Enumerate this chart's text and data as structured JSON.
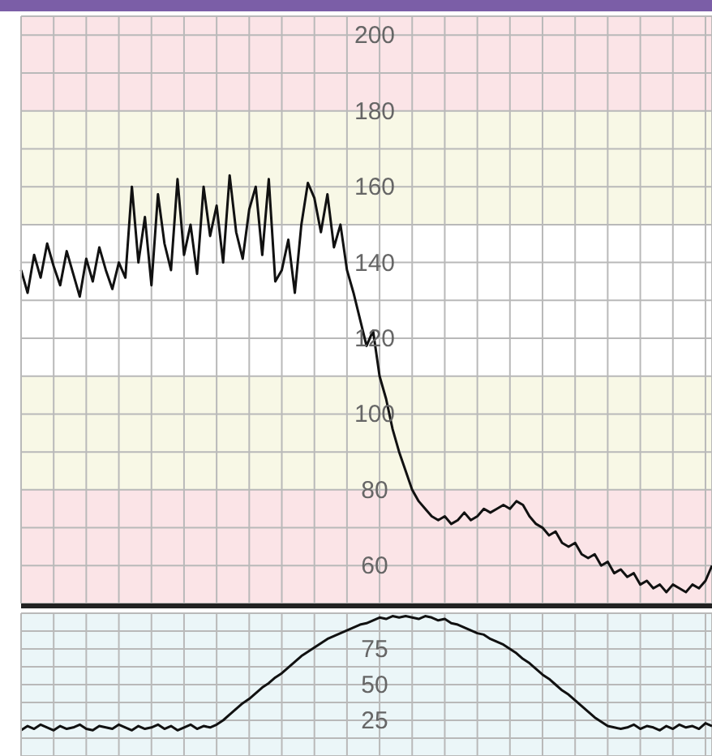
{
  "chart_data": [
    {
      "type": "line",
      "categories": [
        null,
        null,
        null,
        null,
        null,
        null,
        null,
        null,
        null,
        null,
        null,
        null,
        null,
        null,
        null,
        null,
        null,
        null,
        null,
        null,
        null,
        null,
        null,
        null,
        null,
        null,
        null,
        null,
        null,
        null,
        null,
        null,
        null,
        null,
        null,
        null,
        null,
        null,
        null,
        null,
        null,
        null,
        null,
        null,
        null,
        null,
        null,
        null,
        null,
        null,
        null,
        null,
        null,
        null,
        null,
        null,
        null,
        null,
        null,
        null,
        null,
        null,
        null,
        null,
        null,
        null,
        null,
        null,
        null,
        null,
        null,
        null,
        null,
        null,
        null,
        null,
        null,
        null,
        null,
        null,
        null,
        null,
        null,
        null,
        null,
        null,
        null,
        null,
        null,
        null,
        null,
        null,
        null,
        null,
        null,
        null,
        null,
        null,
        null,
        null,
        null,
        null,
        null,
        null,
        null,
        null,
        null
      ],
      "series": [
        {
          "color": "#111111",
          "values": [
            138,
            132,
            142,
            136,
            145,
            139,
            134,
            143,
            137,
            131,
            141,
            135,
            144,
            138,
            133,
            140,
            136,
            160,
            140,
            152,
            134,
            158,
            145,
            138,
            162,
            142,
            150,
            137,
            160,
            147,
            155,
            140,
            163,
            148,
            141,
            154,
            160,
            142,
            162,
            135,
            138,
            146,
            132,
            150,
            161,
            157,
            148,
            158,
            144,
            150,
            138,
            132,
            125,
            118,
            122,
            110,
            104,
            96,
            90,
            85,
            80,
            77,
            75,
            73,
            72,
            73,
            71,
            72,
            74,
            72,
            73,
            75,
            74,
            75,
            76,
            75,
            77,
            76,
            73,
            71,
            70,
            68,
            69,
            66,
            65,
            66,
            63,
            62,
            63,
            60,
            61,
            58,
            59,
            57,
            58,
            55,
            56,
            54,
            55,
            53,
            55,
            54,
            53,
            55,
            54,
            56,
            60
          ]
        }
      ],
      "ylim": [
        50,
        205
      ],
      "yticks": [
        {
          "value": 50,
          "label": null
        },
        60,
        {
          "value": 70,
          "label": null
        },
        80,
        {
          "value": 90,
          "label": null
        },
        100,
        {
          "value": 110,
          "label": null
        },
        120,
        {
          "value": 130,
          "label": null
        },
        140,
        {
          "value": 150,
          "label": null
        },
        160,
        {
          "value": 170,
          "label": null
        },
        180,
        {
          "value": 190,
          "label": null
        },
        200
      ],
      "bands": [
        {
          "axis": "y",
          "from": 180,
          "to": 205,
          "color": "#fbe4e7"
        },
        {
          "axis": "y",
          "from": 150,
          "to": 180,
          "color": "#f8f8e6"
        },
        {
          "axis": "y",
          "from": 80,
          "to": 110,
          "color": "#f8f8e6"
        },
        {
          "axis": "y",
          "from": 50,
          "to": 80,
          "color": "#fbe4e7"
        }
      ],
      "grid": true,
      "tick_labels": "y"
    },
    {
      "type": "line",
      "categories": [
        null,
        null,
        null,
        null,
        null,
        null,
        null,
        null,
        null,
        null,
        null,
        null,
        null,
        null,
        null,
        null,
        null,
        null,
        null,
        null,
        null,
        null,
        null,
        null,
        null,
        null,
        null,
        null,
        null,
        null,
        null,
        null,
        null,
        null,
        null,
        null,
        null,
        null,
        null,
        null,
        null,
        null,
        null,
        null,
        null,
        null,
        null,
        null,
        null,
        null,
        null,
        null,
        null,
        null,
        null,
        null,
        null,
        null,
        null,
        null,
        null,
        null,
        null,
        null,
        null,
        null,
        null,
        null,
        null,
        null,
        null,
        null,
        null,
        null,
        null,
        null,
        null,
        null,
        null,
        null,
        null,
        null,
        null,
        null,
        null,
        null,
        null,
        null,
        null,
        null,
        null,
        null,
        null,
        null,
        null,
        null,
        null,
        null,
        null,
        null,
        null,
        null,
        null,
        null,
        null,
        null,
        null
      ],
      "series": [
        {
          "color": "#111111",
          "values": [
            18,
            21,
            19,
            22,
            20,
            18,
            21,
            19,
            20,
            22,
            19,
            18,
            21,
            20,
            19,
            22,
            20,
            18,
            21,
            19,
            20,
            22,
            19,
            21,
            18,
            20,
            22,
            19,
            21,
            20,
            22,
            25,
            29,
            33,
            37,
            40,
            44,
            48,
            51,
            55,
            58,
            62,
            66,
            70,
            73,
            76,
            79,
            82,
            84,
            86,
            88,
            90,
            92,
            93,
            95,
            97,
            96,
            98,
            97,
            98,
            97,
            96,
            98,
            97,
            95,
            96,
            93,
            92,
            90,
            88,
            86,
            85,
            82,
            80,
            78,
            75,
            72,
            68,
            65,
            61,
            57,
            54,
            50,
            46,
            43,
            39,
            35,
            31,
            27,
            24,
            21,
            20,
            19,
            20,
            22,
            19,
            21,
            20,
            18,
            21,
            19,
            22,
            20,
            21,
            19,
            23,
            21
          ]
        }
      ],
      "ylim": [
        0,
        100
      ],
      "yticks": [
        {
          "value": 0,
          "label": null
        },
        {
          "value": 12.5,
          "label": null
        },
        25,
        {
          "value": 37.5,
          "label": null
        },
        50,
        {
          "value": 62.5,
          "label": null
        },
        75,
        {
          "value": 87.5,
          "label": null
        },
        {
          "value": 100,
          "label": null
        }
      ],
      "bands": [
        {
          "axis": "y",
          "from": 0,
          "to": 100,
          "color": "#ebf6f8"
        }
      ],
      "grid": true,
      "tick_labels": "y"
    }
  ]
}
